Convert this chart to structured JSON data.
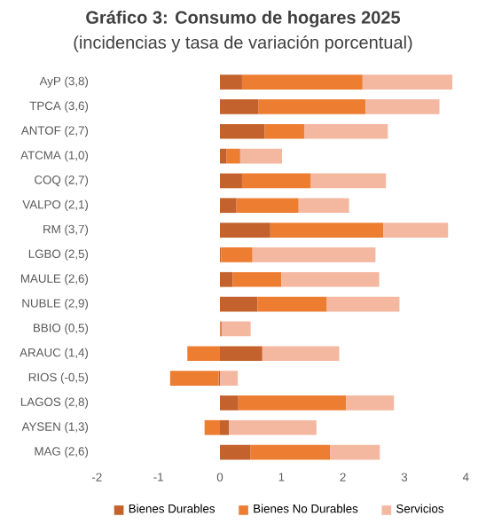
{
  "chart_data": {
    "type": "bar",
    "orientation": "horizontal",
    "stacked": true,
    "title": "Gráfico 3: Consumo de hogares 2025",
    "subtitle": "(incidencias y tasa de variación porcentual)",
    "categories": [
      "AyP (3,8)",
      "TPCA (3,6)",
      "ANTOF (2,7)",
      "ATCMA (1,0)",
      "COQ (2,7)",
      "VALPO (2,1)",
      "RM (3,7)",
      "LGBO (2,5)",
      "MAULE (2,6)",
      "NUBLE (2,9)",
      "BBIO (0,5)",
      "ARAUC (1,4)",
      "RIOS (-0,5)",
      "LAGOS (2,8)",
      "AYSEN (1,3)",
      "MAG (2,6)"
    ],
    "series": [
      {
        "name": "Bienes Durables",
        "color": "#c4622d",
        "values": [
          0.36,
          0.63,
          0.73,
          0.11,
          0.36,
          0.27,
          0.82,
          0.02,
          0.21,
          0.61,
          0.01,
          0.69,
          -0.02,
          0.3,
          0.15,
          0.5
        ]
      },
      {
        "name": "Bienes No Durables",
        "color": "#ed7d31",
        "values": [
          1.96,
          1.74,
          0.64,
          0.22,
          1.12,
          1.01,
          1.84,
          0.51,
          0.79,
          1.13,
          0.02,
          -0.53,
          -0.79,
          1.75,
          -0.25,
          1.29
        ]
      },
      {
        "name": "Servicios",
        "color": "#f4b7a0",
        "values": [
          1.46,
          1.2,
          1.36,
          0.68,
          1.22,
          0.82,
          1.05,
          2.0,
          1.59,
          1.18,
          0.47,
          1.25,
          0.29,
          0.78,
          1.42,
          0.81
        ]
      }
    ],
    "xlim": [
      -2,
      4
    ],
    "xticks": [
      -2,
      -1,
      0,
      1,
      2,
      3,
      4
    ],
    "grid": false,
    "legend": "bottom"
  }
}
